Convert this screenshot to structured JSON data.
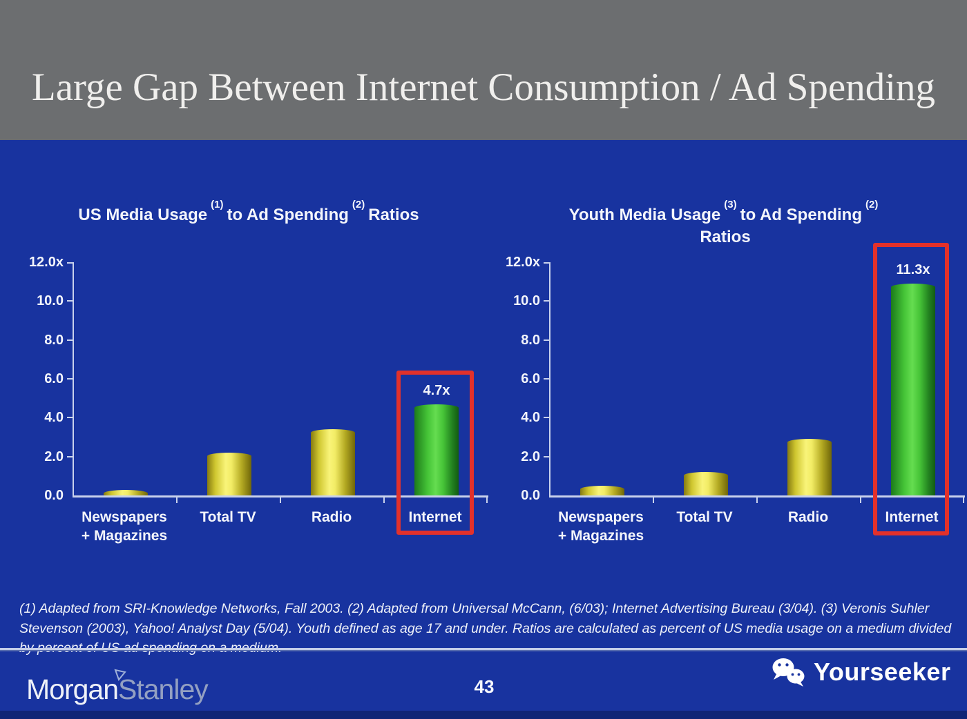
{
  "header": {
    "title": "Large Gap Between Internet Consumption / Ad Spending"
  },
  "charts": [
    {
      "title_seg1": "US Media Usage",
      "title_sup1": "(1)",
      "title_seg2": "to Ad Spending",
      "title_sup2": "(2)",
      "title_seg3": "Ratios",
      "title_line2": ""
    },
    {
      "title_seg1": "Youth Media Usage",
      "title_sup1": "(3)",
      "title_seg2": "to Ad Spending",
      "title_sup2": "(2)",
      "title_seg3": "",
      "title_line2": "Ratios"
    }
  ],
  "chart_data": [
    {
      "type": "bar",
      "title": "US Media Usage (1) to Ad Spending (2) Ratios",
      "categories": [
        "Newspapers + Magazines",
        "Total TV",
        "Radio",
        "Internet"
      ],
      "values": [
        0.3,
        2.2,
        3.4,
        4.7
      ],
      "bar_colors": [
        "yellow",
        "yellow",
        "yellow",
        "green"
      ],
      "highlighted_category": "Internet",
      "value_label": "4.7x",
      "ylim": [
        0,
        12
      ],
      "yticks": [
        "12.0x",
        "10.0",
        "8.0",
        "6.0",
        "4.0",
        "2.0",
        "0.0"
      ],
      "category_display": [
        [
          "Newspapers",
          "+ Magazines"
        ],
        [
          "Total TV",
          ""
        ],
        [
          "Radio",
          ""
        ],
        [
          "Internet",
          ""
        ]
      ],
      "legend": "none",
      "grid": "off"
    },
    {
      "type": "bar",
      "title": "Youth Media Usage (3) to Ad Spending (2) Ratios",
      "categories": [
        "Newspapers + Magazines",
        "Total TV",
        "Radio",
        "Internet"
      ],
      "values": [
        0.5,
        1.2,
        2.9,
        11.3
      ],
      "bar_colors": [
        "yellow",
        "yellow",
        "yellow",
        "green"
      ],
      "highlighted_category": "Internet",
      "value_label": "11.3x",
      "ylim": [
        0,
        12
      ],
      "yticks": [
        "12.0x",
        "10.0",
        "8.0",
        "6.0",
        "4.0",
        "2.0",
        "0.0"
      ],
      "category_display": [
        [
          "Newspapers",
          "+ Magazines"
        ],
        [
          "Total TV",
          ""
        ],
        [
          "Radio",
          ""
        ],
        [
          "Internet",
          ""
        ]
      ],
      "legend": "none",
      "grid": "off"
    }
  ],
  "footnote": {
    "text": "(1) Adapted from SRI-Knowledge Networks, Fall 2003.  (2) Adapted from Universal McCann, (6/03); Internet Advertising Bureau (3/04). (3) Veronis Suhler Stevenson (2003), Yahoo! Analyst Day (5/04).  Youth defined as age 17 and under.  Ratios are calculated as percent of US media usage on a medium divided by percent of US ad spending on a medium."
  },
  "footer": {
    "brand_part1": "Morgan",
    "brand_part2": "Stanley",
    "page_number": "43",
    "watermark_text": "Yourseeker",
    "icons": {
      "watermark_icon": "wechat-icon",
      "brand_icon": "triangle-icon"
    }
  },
  "colors": {
    "slide_blue": "#18339F",
    "header_gray": "#6C6E70",
    "bar_yellow": "#F3ED6B",
    "bar_green": "#52D341",
    "highlight_red": "#E2312B",
    "axis_line": "#C9D2EC",
    "bottom_strip": "#0F2576"
  }
}
